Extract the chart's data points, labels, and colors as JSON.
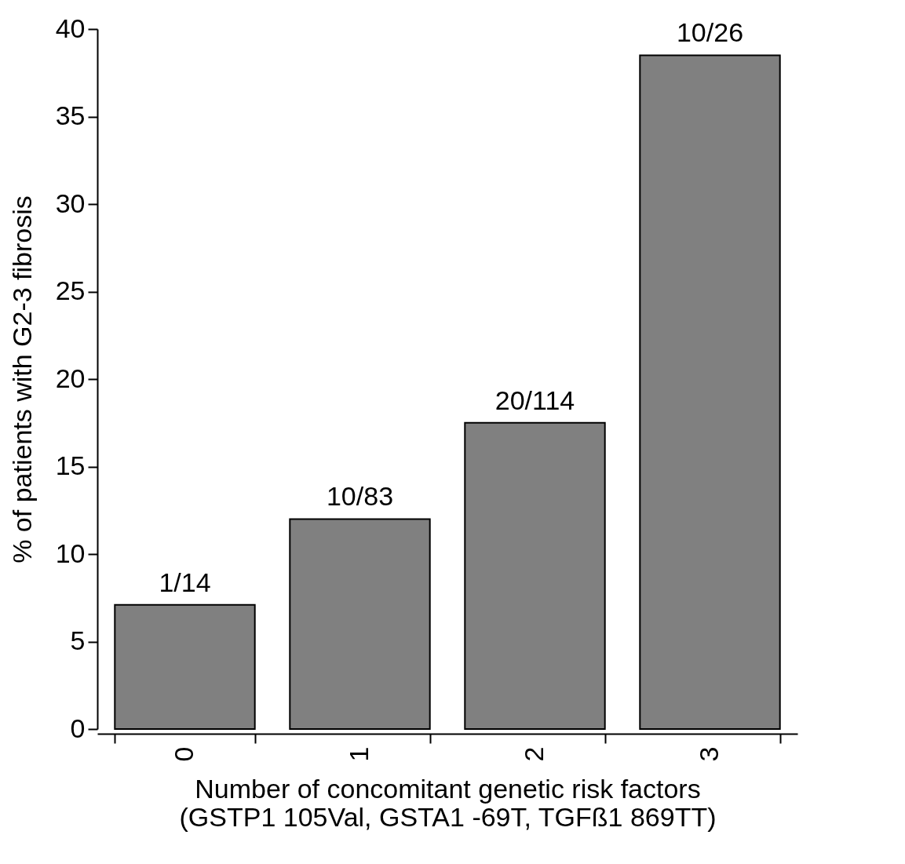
{
  "chart_data": {
    "type": "bar",
    "xlabel": "Number of concomitant genetic risk factors\n(GSTP1 105Val, GSTA1 -69T, TGFß1 869TT)",
    "ylabel": "% of patients with G2-3 fibrosis",
    "categories": [
      "0",
      "1",
      "2",
      "3"
    ],
    "values": [
      7.1,
      12.0,
      17.5,
      38.5
    ],
    "value_labels": [
      "1/14",
      "10/83",
      "20/114",
      "10/26"
    ],
    "color": "#808080",
    "ylim": [
      0,
      40
    ],
    "yticks": [
      0,
      5,
      10,
      15,
      20,
      25,
      30,
      35,
      40
    ],
    "grid": false
  }
}
